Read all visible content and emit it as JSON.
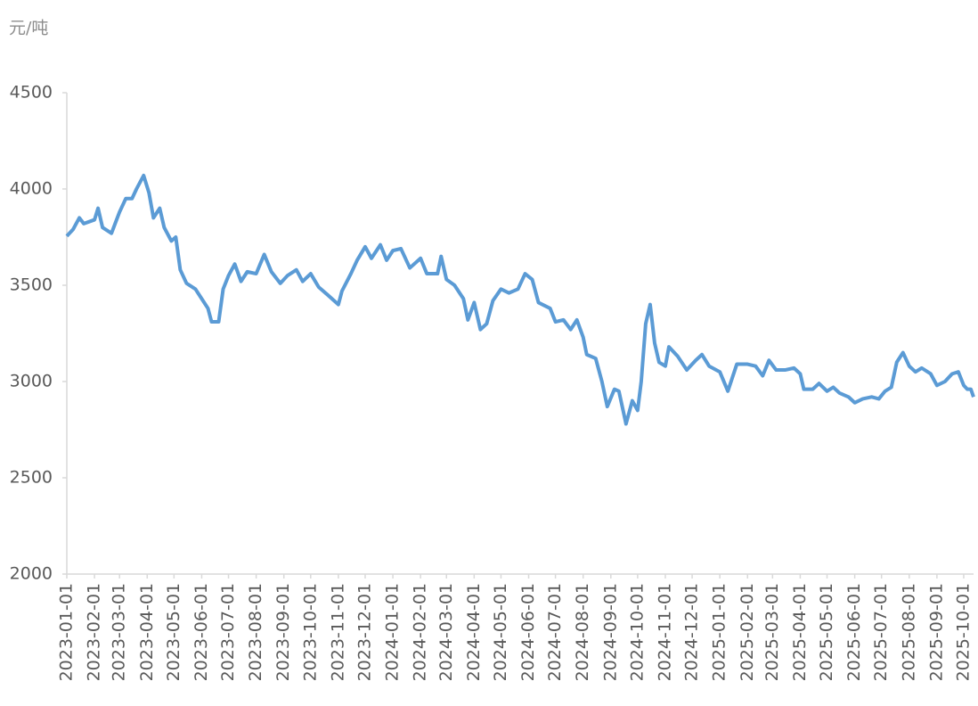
{
  "chart_data": {
    "type": "line",
    "y_label": "元/吨",
    "x": [
      "2023-01-01",
      "2023-01-08",
      "2023-01-15",
      "2023-01-20",
      "2023-02-01",
      "2023-02-05",
      "2023-02-10",
      "2023-02-20",
      "2023-03-01",
      "2023-03-08",
      "2023-03-15",
      "2023-03-20",
      "2023-03-28",
      "2023-04-03",
      "2023-04-08",
      "2023-04-15",
      "2023-04-20",
      "2023-04-28",
      "2023-05-03",
      "2023-05-08",
      "2023-05-15",
      "2023-05-25",
      "2023-06-01",
      "2023-06-08",
      "2023-06-12",
      "2023-06-20",
      "2023-06-25",
      "2023-07-01",
      "2023-07-08",
      "2023-07-15",
      "2023-07-22",
      "2023-08-01",
      "2023-08-10",
      "2023-08-18",
      "2023-08-28",
      "2023-09-05",
      "2023-09-15",
      "2023-09-22",
      "2023-10-01",
      "2023-10-10",
      "2023-10-20",
      "2023-11-01",
      "2023-11-05",
      "2023-11-15",
      "2023-11-22",
      "2023-12-01",
      "2023-12-08",
      "2023-12-18",
      "2023-12-25",
      "2024-01-01",
      "2024-01-10",
      "2024-01-20",
      "2024-02-01",
      "2024-02-08",
      "2024-02-20",
      "2024-02-24",
      "2024-03-01",
      "2024-03-10",
      "2024-03-20",
      "2024-03-25",
      "2024-04-01",
      "2024-04-08",
      "2024-04-15",
      "2024-04-22",
      "2024-05-01",
      "2024-05-10",
      "2024-05-20",
      "2024-05-28",
      "2024-06-05",
      "2024-06-12",
      "2024-06-25",
      "2024-07-01",
      "2024-07-10",
      "2024-07-18",
      "2024-07-25",
      "2024-08-01",
      "2024-08-05",
      "2024-08-15",
      "2024-08-22",
      "2024-08-28",
      "2024-09-05",
      "2024-09-10",
      "2024-09-18",
      "2024-09-25",
      "2024-10-01",
      "2024-10-05",
      "2024-10-10",
      "2024-10-15",
      "2024-10-20",
      "2024-10-25",
      "2024-11-01",
      "2024-11-05",
      "2024-11-15",
      "2024-11-25",
      "2024-12-05",
      "2024-12-12",
      "2024-12-20",
      "2025-01-01",
      "2025-01-10",
      "2025-01-20",
      "2025-02-01",
      "2025-02-10",
      "2025-02-18",
      "2025-02-25",
      "2025-03-05",
      "2025-03-15",
      "2025-03-25",
      "2025-04-01",
      "2025-04-05",
      "2025-04-15",
      "2025-04-22",
      "2025-05-01",
      "2025-05-08",
      "2025-05-15",
      "2025-05-25",
      "2025-06-01",
      "2025-06-10",
      "2025-06-20",
      "2025-06-28",
      "2025-07-05",
      "2025-07-12",
      "2025-07-18",
      "2025-07-25",
      "2025-08-01",
      "2025-08-08",
      "2025-08-15",
      "2025-08-25",
      "2025-09-01",
      "2025-09-10",
      "2025-09-18",
      "2025-09-25",
      "2025-10-01",
      "2025-10-05",
      "2025-10-09",
      "2025-10-12"
    ],
    "series": [
      {
        "color": "#5b9bd5",
        "values": [
          3755,
          3790,
          3850,
          3820,
          3840,
          3900,
          3800,
          3770,
          3880,
          3950,
          3950,
          4000,
          4070,
          3980,
          3850,
          3900,
          3800,
          3730,
          3750,
          3580,
          3510,
          3480,
          3430,
          3380,
          3310,
          3310,
          3480,
          3550,
          3610,
          3520,
          3570,
          3560,
          3660,
          3570,
          3510,
          3550,
          3580,
          3520,
          3560,
          3490,
          3450,
          3400,
          3470,
          3560,
          3630,
          3700,
          3640,
          3710,
          3630,
          3680,
          3690,
          3590,
          3640,
          3560,
          3560,
          3650,
          3530,
          3500,
          3430,
          3320,
          3410,
          3270,
          3300,
          3420,
          3480,
          3460,
          3480,
          3560,
          3530,
          3410,
          3380,
          3310,
          3320,
          3270,
          3320,
          3230,
          3140,
          3120,
          3000,
          2870,
          2960,
          2950,
          2780,
          2900,
          2850,
          3000,
          3300,
          3400,
          3200,
          3100,
          3080,
          3180,
          3130,
          3060,
          3110,
          3140,
          3080,
          3050,
          2950,
          3090,
          3090,
          3080,
          3030,
          3110,
          3060,
          3060,
          3070,
          3040,
          2960,
          2960,
          2990,
          2950,
          2970,
          2940,
          2920,
          2890,
          2910,
          2920,
          2910,
          2950,
          2970,
          3100,
          3150,
          3080,
          3050,
          3070,
          3040,
          2980,
          3000,
          3040,
          3050,
          2980,
          2960,
          2960,
          2920
        ]
      }
    ],
    "xlim": [
      "2023-01-01",
      "2025-10-12"
    ],
    "xticks": [
      "2023-01-01",
      "2023-02-01",
      "2023-03-01",
      "2023-04-01",
      "2023-05-01",
      "2023-06-01",
      "2023-07-01",
      "2023-08-01",
      "2023-09-01",
      "2023-10-01",
      "2023-11-01",
      "2023-12-01",
      "2024-01-01",
      "2024-02-01",
      "2024-03-01",
      "2024-04-01",
      "2024-05-01",
      "2024-06-01",
      "2024-07-01",
      "2024-08-01",
      "2024-09-01",
      "2024-10-01",
      "2024-11-01",
      "2024-12-01",
      "2025-01-01",
      "2025-02-01",
      "2025-03-01",
      "2025-04-01",
      "2025-05-01",
      "2025-06-01",
      "2025-07-01",
      "2025-08-01",
      "2025-09-01",
      "2025-10-01"
    ],
    "ylim": [
      2000,
      4500
    ],
    "yticks": [
      2000,
      2500,
      3000,
      3500,
      4000,
      4500
    ],
    "grid": false
  }
}
